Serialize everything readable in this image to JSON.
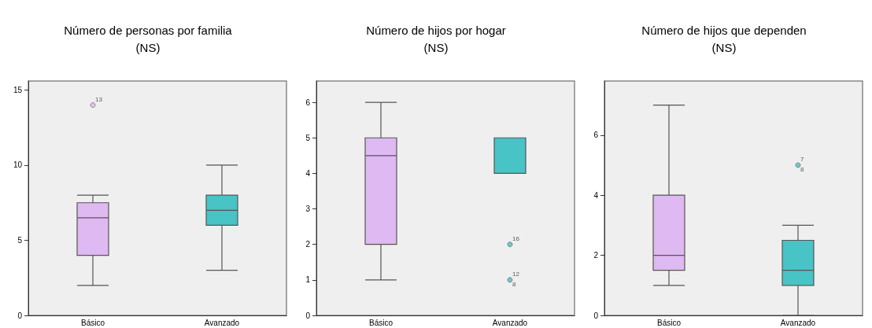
{
  "chart_data": [
    {
      "type": "box",
      "title": "Número de personas por familia\n(NS)",
      "categories": [
        "Básico",
        "Avanzado"
      ],
      "colors": [
        "#dfb9f2",
        "#48c3c6"
      ],
      "ylim": [
        0,
        15.6
      ],
      "yticks": [
        0,
        5,
        10,
        15
      ],
      "boxes": [
        {
          "low": 2,
          "q1": 4,
          "median": 6.5,
          "q3": 7.5,
          "high": 8
        },
        {
          "low": 3,
          "q1": 6,
          "median": 7,
          "q3": 8,
          "high": 10
        }
      ],
      "series": [
        {
          "type": "scatter",
          "x": [
            "Básico"
          ],
          "values": [
            14
          ],
          "color": "#dfb9f2"
        }
      ],
      "annotations": [
        {
          "text": "13",
          "x": "Básico",
          "y": 14
        }
      ]
    },
    {
      "type": "box",
      "title": "Número de hijos por hogar\n(NS)",
      "categories": [
        "Básico",
        "Avanzado"
      ],
      "colors": [
        "#dfb9f2",
        "#48c3c6"
      ],
      "ylim": [
        0,
        6.6
      ],
      "yticks": [
        0,
        1,
        2,
        3,
        4,
        5,
        6
      ],
      "boxes": [
        {
          "low": 1,
          "q1": 2,
          "median": 4.5,
          "q3": 5,
          "high": 6
        },
        {
          "low": 4,
          "q1": 4,
          "median": 5,
          "q3": 5,
          "high": 5
        }
      ],
      "series": [
        {
          "type": "scatter",
          "x": [
            "Avanzado",
            "Avanzado"
          ],
          "values": [
            2,
            1
          ],
          "color": "#48c3c6"
        }
      ],
      "annotations": [
        {
          "text": "16",
          "x": "Avanzado",
          "y": 2
        },
        {
          "text": "12",
          "x": "Avanzado",
          "y": 1
        },
        {
          "text": "8",
          "x": "Avanzado",
          "y": 1
        }
      ]
    },
    {
      "type": "box",
      "title": "Número de hijos que dependen\n(NS)",
      "categories": [
        "Básico",
        "Avanzado"
      ],
      "colors": [
        "#dfb9f2",
        "#48c3c6"
      ],
      "ylim": [
        0,
        7.8
      ],
      "yticks": [
        0,
        2,
        4,
        6
      ],
      "boxes": [
        {
          "low": 1,
          "q1": 1.5,
          "median": 2,
          "q3": 4,
          "high": 7
        },
        {
          "low": 0,
          "q1": 1,
          "median": 1.5,
          "q3": 2.5,
          "high": 3
        }
      ],
      "series": [
        {
          "type": "scatter",
          "x": [
            "Avanzado"
          ],
          "values": [
            5
          ],
          "color": "#48c3c6"
        }
      ],
      "annotations": [
        {
          "text": "7",
          "x": "Avanzado",
          "y": 5
        },
        {
          "text": "8",
          "x": "Avanzado",
          "y": 5
        }
      ]
    }
  ]
}
